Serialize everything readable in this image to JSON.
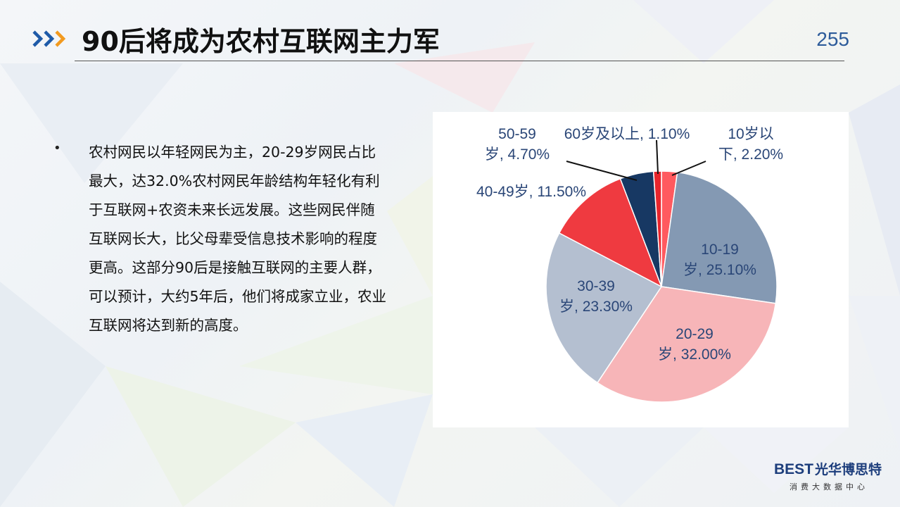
{
  "header": {
    "title": "90后将成为农村互联网主力军",
    "page_number": "255"
  },
  "body": {
    "bullet_symbol": "•",
    "bullet_text": "农村网民以年轻网民为主，20-29岁网民占比最大，达32.0%农村网民年龄结构年轻化有利于互联网+农资未来长远发展。这些网民伴随互联网长大，比父母辈受信息技术影响的程度更高。这部分90后是接触互联网的主要人群，可以预计，大约5年后，他们将成家立业，农业互联网将达到新的高度。"
  },
  "chart_data": {
    "type": "pie",
    "title": "",
    "start_angle_deg": 0,
    "direction": "clockwise",
    "slices": [
      {
        "label_lines": [
          "10岁以",
          "下, 2.20%"
        ],
        "category": "10岁以下",
        "value": 2.2,
        "color": "#ff5a5f"
      },
      {
        "label_lines": [
          "10-19",
          "岁, 25.10%"
        ],
        "category": "10-19岁",
        "value": 25.1,
        "color": "#8499b3"
      },
      {
        "label_lines": [
          "20-29",
          "岁, 32.00%"
        ],
        "category": "20-29岁",
        "value": 32.0,
        "color": "#f7b5b8"
      },
      {
        "label_lines": [
          "30-39",
          "岁, 23.30%"
        ],
        "category": "30-39岁",
        "value": 23.3,
        "color": "#b4bfd0"
      },
      {
        "label_lines": [
          "40-49岁, 11.50%"
        ],
        "category": "40-49岁",
        "value": 11.5,
        "color": "#ef3a40"
      },
      {
        "label_lines": [
          "50-59",
          "岁, 4.70%"
        ],
        "category": "50-59岁",
        "value": 4.7,
        "color": "#173863"
      },
      {
        "label_lines": [
          "60岁及以上, 1.10%"
        ],
        "category": "60岁及以上",
        "value": 1.1,
        "color": "#e8252c"
      }
    ]
  },
  "logo": {
    "brand_latin": "EST",
    "brand_prefix": "B",
    "brand_cn": "光华博思特",
    "tagline": "消费大数据中心"
  }
}
